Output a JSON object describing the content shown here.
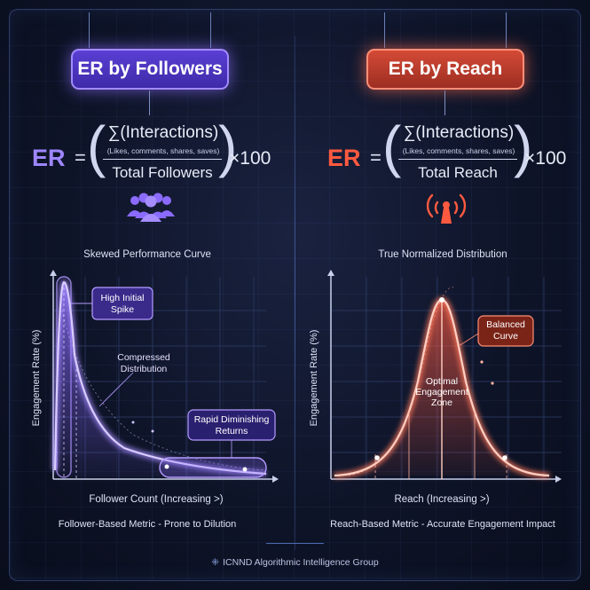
{
  "left": {
    "badge": "ER by Followers",
    "formula": {
      "er": "ER",
      "eq": "=",
      "numerator": "∑(Interactions)",
      "sub": "(Likes, comments, shares, saves)",
      "denominator": "Total Followers",
      "multiplier": "×100"
    },
    "icon": "group-people-icon",
    "caption": "Skewed Performance Curve",
    "footer": "Follower-Based Metric - Prone to Dilution",
    "accent": "#8b6bff"
  },
  "right": {
    "badge": "ER by Reach",
    "formula": {
      "er": "ER",
      "eq": "=",
      "numerator": "∑(Interactions)",
      "sub": "(Likes, comments, shares, saves)",
      "denominator": "Total Reach",
      "multiplier": "×100"
    },
    "icon": "broadcast-antenna-icon",
    "caption": "True Normalized Distribution",
    "footer": "Reach-Based Metric - Accurate Engagement Impact",
    "accent": "#ff5a40"
  },
  "chart_data": [
    {
      "type": "line",
      "curve": "skewed",
      "xlabel": "Follower Count (Increasing >)",
      "ylabel": "Engagement Rate (%)",
      "annotations": [
        "High Initial Spike",
        "Compressed Distribution",
        "Rapid Diminishing Returns"
      ]
    },
    {
      "type": "line",
      "curve": "normal",
      "xlabel": "Reach (Increasing >)",
      "ylabel": "Engagement Rate (%)",
      "annotations": [
        "Balanced Curve",
        "Optimal Engagement Zone"
      ]
    }
  ],
  "brand": "ICNND Algorithmic Intelligence Group"
}
